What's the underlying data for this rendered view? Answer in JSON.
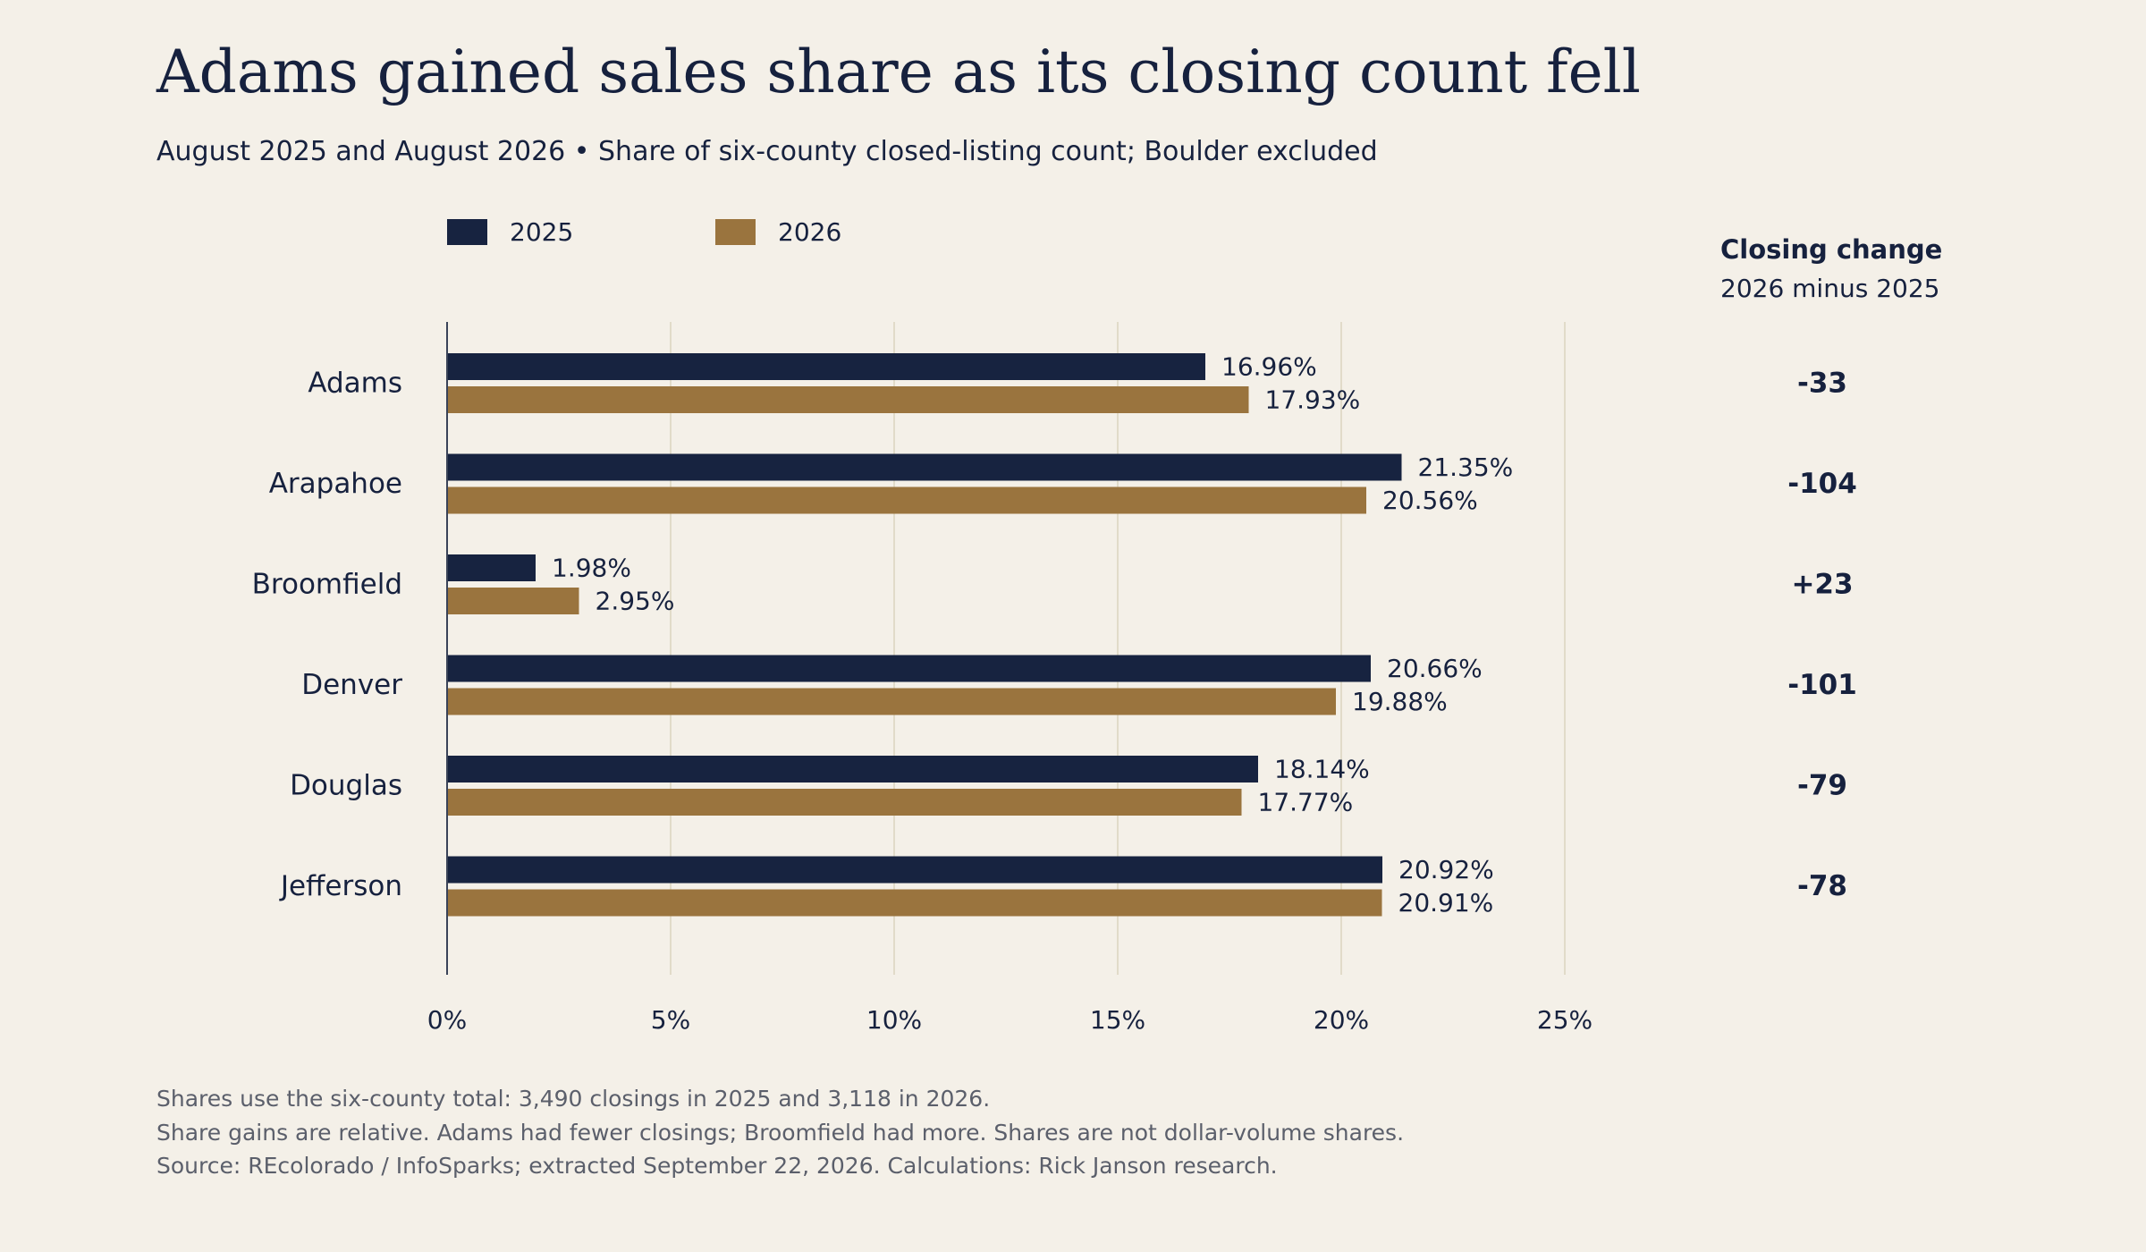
{
  "title": "Adams gained sales share as its closing count fell",
  "subtitle": "August 2025 and August 2026 • Share of six-county closed-listing count; Boulder excluded",
  "change_column": {
    "heading": "Closing change",
    "subheading": "2026 minus 2025"
  },
  "colors": {
    "series_2025": "#172340",
    "series_2026": "#9a743e",
    "background": "#f4f0e8",
    "grid": "#e1dbc9",
    "text": "#16213e",
    "footnote": "#5b5f6b"
  },
  "chart_data": {
    "type": "bar",
    "orientation": "horizontal",
    "title": "Adams gained sales share as its closing count fell",
    "categories": [
      "Adams",
      "Arapahoe",
      "Broomfield",
      "Denver",
      "Douglas",
      "Jefferson"
    ],
    "series": [
      {
        "name": "2025",
        "values": [
          16.96,
          21.35,
          1.98,
          20.66,
          18.14,
          20.92
        ],
        "labels": [
          "16.96%",
          "21.35%",
          "1.98%",
          "20.66%",
          "18.14%",
          "20.92%"
        ]
      },
      {
        "name": "2026",
        "values": [
          17.93,
          20.56,
          2.95,
          19.88,
          17.77,
          20.91
        ],
        "labels": [
          "17.93%",
          "20.56%",
          "2.95%",
          "19.88%",
          "17.77%",
          "20.91%"
        ]
      }
    ],
    "closing_change": [
      "-33",
      "-104",
      "+23",
      "-101",
      "-79",
      "-78"
    ],
    "xlim": [
      0,
      25
    ],
    "xticks": [
      0,
      5,
      10,
      15,
      20,
      25
    ],
    "xtick_labels": [
      "0%",
      "5%",
      "10%",
      "15%",
      "20%",
      "25%"
    ],
    "xlabel": "",
    "ylabel": "",
    "grid": "vertical",
    "legend": "top"
  },
  "footnotes": [
    "Shares use the six-county total: 3,490 closings in 2025 and 3,118 in 2026.",
    "Share gains are relative. Adams had fewer closings; Broomfield had more. Shares are not dollar-volume shares.",
    "Source: REcolorado / InfoSparks; extracted September 22, 2026. Calculations: Rick Janson research."
  ]
}
